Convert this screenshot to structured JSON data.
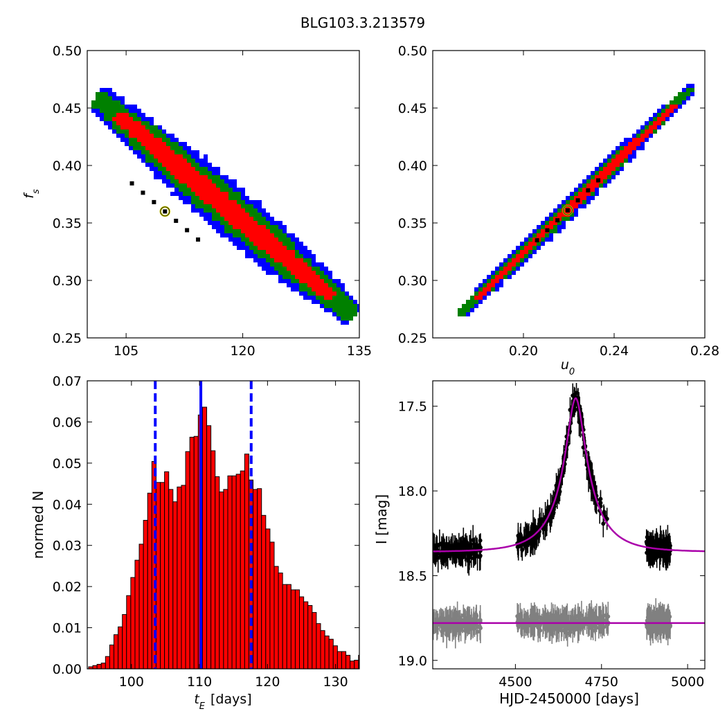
{
  "title": "BLG103.3.213579",
  "chart_data": [
    {
      "type": "heatmap",
      "panel": "top-left",
      "xlabel": "",
      "ylabel": "f_s",
      "ylabel_main": "f",
      "ylabel_sub": "s",
      "xlim": [
        100,
        135
      ],
      "ylim": [
        0.25,
        0.5
      ],
      "xticks": [
        "105",
        "120",
        "135"
      ],
      "xtick_values": [
        105,
        120,
        135
      ],
      "yticks": [
        "0.25",
        "0.30",
        "0.35",
        "0.40",
        "0.45",
        "0.50"
      ],
      "ytick_values": [
        0.25,
        0.3,
        0.35,
        0.4,
        0.45,
        0.5
      ],
      "region_colors": {
        "outer": "#0000ff",
        "middle": "#008000",
        "inner": "#ff0000",
        "best": "#000000"
      },
      "band_axis": {
        "start": [
          102,
          0.455
        ],
        "end": [
          133.5,
          0.274
        ]
      },
      "band_half_widths": {
        "outer": 0.022,
        "middle": 0.016,
        "inner": 0.009
      },
      "best_fit": {
        "x": 110,
        "y": 0.36
      }
    },
    {
      "type": "heatmap",
      "panel": "top-right",
      "xlabel": "u_0",
      "xlabel_main": "u",
      "xlabel_sub": "0",
      "ylabel": "",
      "xlim": [
        0.16,
        0.28
      ],
      "ylim": [
        0.25,
        0.5
      ],
      "xticks": [
        "0.20",
        "0.24",
        "0.28"
      ],
      "xtick_values": [
        0.2,
        0.24,
        0.28
      ],
      "yticks": [
        "0.25",
        "0.30",
        "0.35",
        "0.40",
        "0.45",
        "0.50"
      ],
      "ytick_values": [
        0.25,
        0.3,
        0.35,
        0.4,
        0.45,
        0.5
      ],
      "region_colors": {
        "outer": "#0000ff",
        "middle": "#008000",
        "inner": "#ff0000",
        "best": "#000000"
      },
      "band_axis": {
        "start": [
          0.173,
          0.272
        ],
        "end": [
          0.273,
          0.465
        ]
      },
      "band_half_widths": {
        "outer": 0.009,
        "middle": 0.006,
        "inner": 0.0035
      },
      "best_fit": {
        "x": 0.2195,
        "y": 0.361
      }
    },
    {
      "type": "bar",
      "panel": "bottom-left",
      "xlabel": "t_E  [days]",
      "xlabel_main": "t",
      "xlabel_sub": "E",
      "xlabel_suffix": "[days]",
      "ylabel": "normed N",
      "xlim": [
        93.5,
        133.5
      ],
      "ylim": [
        0,
        0.07
      ],
      "xticks": [
        "100",
        "110",
        "120",
        "130"
      ],
      "xtick_values": [
        100,
        110,
        120,
        130
      ],
      "yticks": [
        "0.00",
        "0.01",
        "0.02",
        "0.03",
        "0.04",
        "0.05",
        "0.06",
        "0.07"
      ],
      "ytick_values": [
        0,
        0.01,
        0.02,
        0.03,
        0.04,
        0.05,
        0.06,
        0.07
      ],
      "bin_width": 0.62,
      "bin_start": 93.7,
      "values": [
        0.0005,
        0.0008,
        0.0011,
        0.0014,
        0.003,
        0.0058,
        0.0083,
        0.0102,
        0.0132,
        0.0178,
        0.0222,
        0.0264,
        0.0303,
        0.0361,
        0.0427,
        0.0504,
        0.0453,
        0.0453,
        0.0479,
        0.0436,
        0.0406,
        0.0442,
        0.0446,
        0.0528,
        0.0563,
        0.0565,
        0.0617,
        0.0636,
        0.0591,
        0.053,
        0.0467,
        0.043,
        0.0436,
        0.0469,
        0.0469,
        0.0473,
        0.0481,
        0.0522,
        0.0459,
        0.0436,
        0.0438,
        0.0373,
        0.034,
        0.0308,
        0.0249,
        0.0233,
        0.0205,
        0.0205,
        0.0192,
        0.0192,
        0.0175,
        0.0163,
        0.0154,
        0.0137,
        0.011,
        0.0093,
        0.008,
        0.0072,
        0.0056,
        0.0042,
        0.0042,
        0.0033,
        0.0019,
        0.0021,
        0.0033,
        0.001,
        0.0008,
        0.0006
      ],
      "bar_color": "#ff0000",
      "vlines": [
        {
          "x": 103.5,
          "style": "dashed",
          "color": "#0000ff"
        },
        {
          "x": 110.2,
          "style": "solid",
          "color": "#0000ff"
        },
        {
          "x": 117.6,
          "style": "dashed",
          "color": "#0000ff"
        }
      ]
    },
    {
      "type": "scatter",
      "panel": "bottom-right",
      "xlabel": "HJD-2450000 [days]",
      "ylabel": "I [mag]",
      "xlim": [
        4260,
        5050
      ],
      "ylim": [
        19.05,
        17.35
      ],
      "y_inverted": true,
      "xticks": [
        "4500",
        "4750",
        "5000"
      ],
      "xtick_values": [
        4500,
        4750,
        5000
      ],
      "yticks": [
        "17.5",
        "18.0",
        "18.5",
        "19.0"
      ],
      "ytick_values": [
        17.5,
        18.0,
        18.5,
        19.0
      ],
      "model": {
        "t0": 4675,
        "u0": 0.22,
        "tE": 110,
        "fs": 0.36,
        "base_mag": 18.36,
        "color": "#aa00aa"
      },
      "residual_baseline": {
        "y": 18.78,
        "color": "#aa00aa"
      },
      "observing_seasons": [
        [
          4260,
          4400
        ],
        [
          4505,
          4770
        ],
        [
          4880,
          4950
        ]
      ],
      "series": [
        {
          "name": "",
          "color": "#000000",
          "scatter": 0.07
        },
        {
          "name": "",
          "color": "#808080",
          "scatter": 0.06
        }
      ]
    }
  ]
}
